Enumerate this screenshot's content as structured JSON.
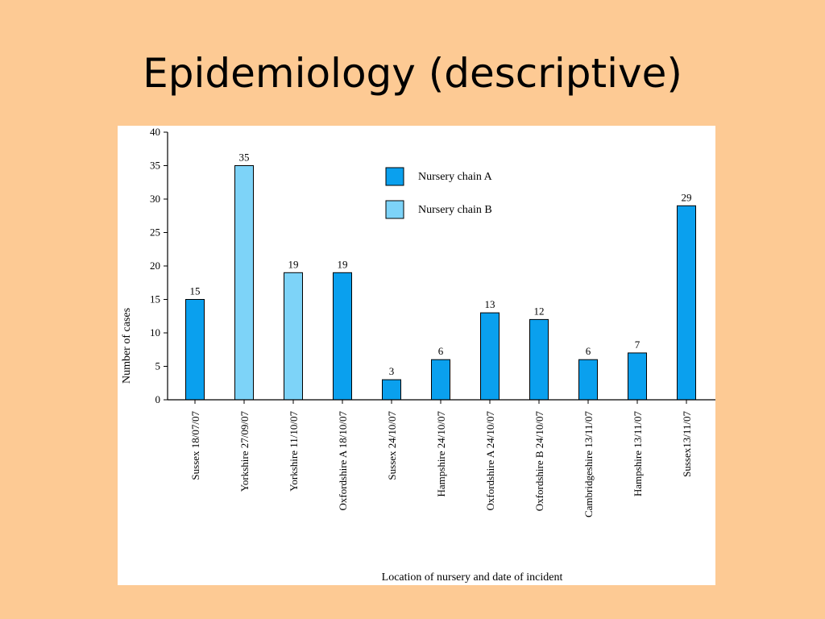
{
  "slide": {
    "title": "Epidemiology (descriptive)"
  },
  "chart_data": {
    "type": "bar",
    "title": "",
    "xlabel": "Location of nursery and date of incident",
    "ylabel": "Number of cases",
    "ylim": [
      0,
      40
    ],
    "yticks": [
      0,
      5,
      10,
      15,
      20,
      25,
      30,
      35,
      40
    ],
    "grid": false,
    "legend_position": "top-right",
    "categories": [
      "Sussex 18/07/07",
      "Yorkshire 27/09/07",
      "Yorkshire 11/10/07",
      "Oxfordshire A 18/10/07",
      "Sussex 24/10/07",
      "Hampshire 24/10/07",
      "Oxfordshire A 24/10/07",
      "Oxfordshire B 24/10/07",
      "Cambridgeshire 13/11/07",
      "Hampshire 13/11/07",
      "Sussex13/11/07"
    ],
    "values": [
      15,
      35,
      19,
      19,
      3,
      6,
      13,
      12,
      6,
      7,
      29
    ],
    "data_labels": [
      "15",
      "35",
      "19",
      "19",
      "3",
      "6",
      "13",
      "12",
      "6",
      "7",
      "29"
    ],
    "bar_series": [
      "A",
      "B",
      "B",
      "A",
      "A",
      "A",
      "A",
      "A",
      "A",
      "A",
      "A"
    ],
    "series": [
      {
        "key": "A",
        "name": "Nursery chain A",
        "color": "#0AA0EE"
      },
      {
        "key": "B",
        "name": "Nursery chain B",
        "color": "#7DD3F8"
      }
    ]
  }
}
